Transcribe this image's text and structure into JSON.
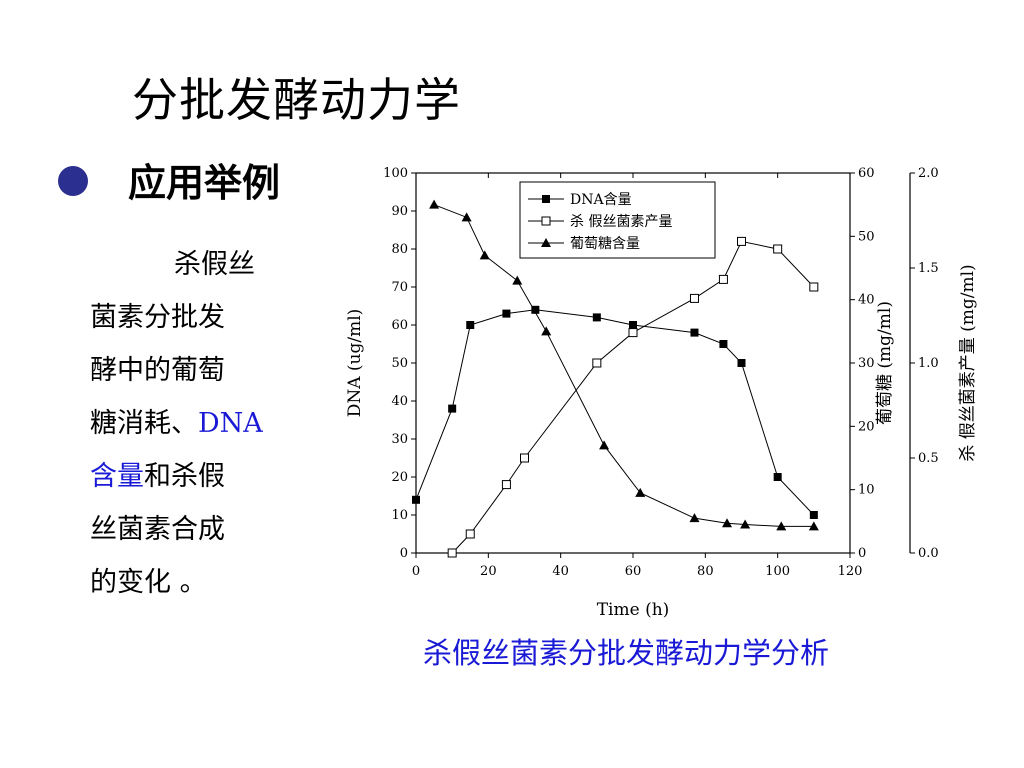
{
  "slide": {
    "title": "分批发酵动力学",
    "bullet": "应用举例",
    "body": {
      "part1": "杀假丝",
      "part2": "菌素分批发",
      "part3": "酵中的葡萄",
      "part4": "糖消耗、",
      "highlight1": "DNA",
      "highlight2": "含量",
      "part5": "和杀假",
      "part6": "丝菌素合成",
      "part7": "的变化 。"
    },
    "caption": "杀假丝菌素分批发酵动力学分析"
  },
  "colors": {
    "bullet": "#2b2f8f",
    "highlight": "#1a1ad6",
    "caption": "#1a1ad6"
  },
  "chart_data": {
    "type": "line",
    "xlabel": "Time (h)",
    "xlim": [
      0,
      120
    ],
    "x_ticks": [
      "0",
      "20",
      "40",
      "60",
      "80",
      "100",
      "120"
    ],
    "axes": {
      "left": {
        "label": "DNA (ug/ml)",
        "ylim": [
          0,
          100
        ],
        "ticks": [
          "0",
          "10",
          "20",
          "30",
          "40",
          "50",
          "60",
          "70",
          "80",
          "90",
          "100"
        ]
      },
      "right1": {
        "label": "葡萄糖 (mg/ml)",
        "ylim": [
          0,
          60
        ],
        "ticks": [
          "0",
          "10",
          "20",
          "30",
          "40",
          "50",
          "60"
        ]
      },
      "right2": {
        "label": "杀 假丝菌素产量 (mg/ml)",
        "ylim": [
          0,
          2.0
        ],
        "ticks": [
          "0.0",
          "0.5",
          "1.0",
          "1.5",
          "2.0"
        ]
      }
    },
    "legend_position": "top-right",
    "series": [
      {
        "name": "DNA含量",
        "marker": "filled-square",
        "axis": "left",
        "x": [
          0,
          10,
          15,
          25,
          33,
          50,
          60,
          77,
          85,
          90,
          100,
          110
        ],
        "values": [
          14,
          38,
          60,
          63,
          64,
          62,
          60,
          58,
          55,
          50,
          20,
          10
        ]
      },
      {
        "name": "杀 假丝菌素产量",
        "marker": "open-square",
        "axis": "right2",
        "x": [
          10,
          15,
          25,
          30,
          50,
          60,
          77,
          85,
          90,
          100,
          110
        ],
        "values": [
          0.0,
          0.1,
          0.36,
          0.5,
          1.0,
          1.16,
          1.34,
          1.44,
          1.64,
          1.6,
          1.4
        ]
      },
      {
        "name": "葡萄糖含量",
        "marker": "filled-triangle",
        "axis": "right1",
        "x": [
          5,
          14,
          19,
          28,
          36,
          52,
          62,
          77,
          86,
          91,
          101,
          110
        ],
        "values": [
          55,
          53,
          47,
          43,
          35,
          17,
          9.5,
          5.5,
          4.7,
          4.5,
          4.2,
          4.2
        ]
      }
    ]
  }
}
